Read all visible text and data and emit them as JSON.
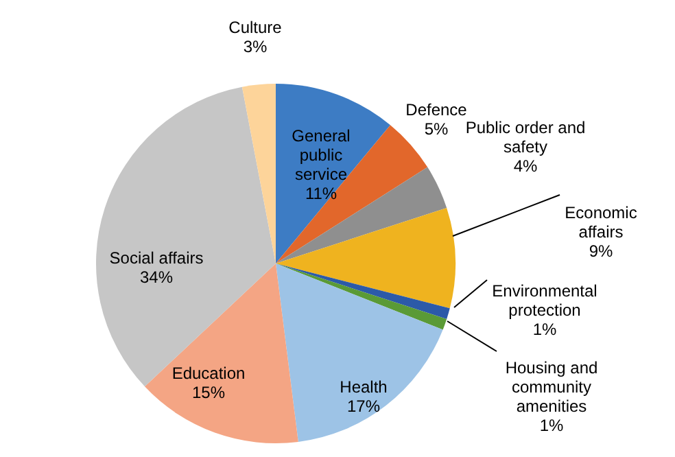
{
  "chart_data": {
    "type": "pie",
    "categories": [
      "General public service",
      "Defence",
      "Public order and safety",
      "Economic affairs",
      "Environmental protection",
      "Housing and community amenities",
      "Health",
      "Education",
      "Social affairs",
      "Culture"
    ],
    "values": [
      11,
      5,
      4,
      9,
      1,
      1,
      17,
      15,
      34,
      3
    ],
    "value_labels": [
      "11%",
      "5%",
      "4%",
      "9%",
      "1%",
      "1%",
      "17%",
      "15%",
      "34%",
      "3%"
    ],
    "colors": [
      "#3d7cc4",
      "#e2672b",
      "#8f8f8f",
      "#efb31f",
      "#2c5aa8",
      "#5a9a36",
      "#9dc3e6",
      "#f4a584",
      "#c6c6c6",
      "#fdd49a"
    ]
  }
}
